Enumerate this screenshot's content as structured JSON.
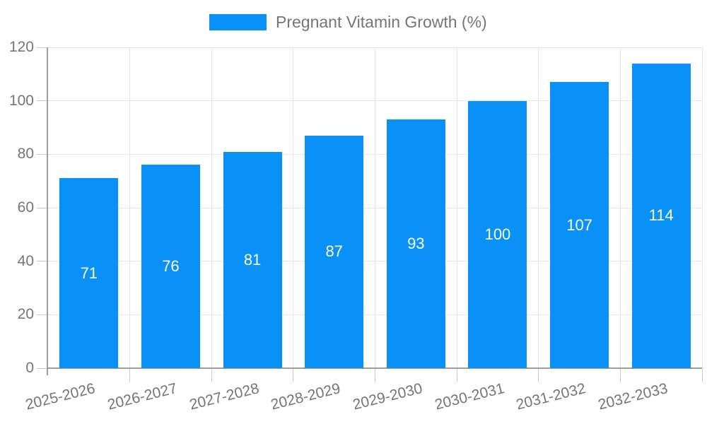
{
  "legend": {
    "label": "Pregnant Vitamin Growth (%)"
  },
  "colors": {
    "bar": "#0a91f7",
    "grid_line": "#e6e6e6",
    "axis_line": "#9e9e9e",
    "tick_mark": "#cccccc",
    "tick_label_text": "#757575",
    "legend_text": "#757575",
    "value_label_text": "#ffffff",
    "background": "#ffffff"
  },
  "chart_data": {
    "type": "bar",
    "title": "",
    "xlabel": "",
    "ylabel": "",
    "categories": [
      "2025-2026",
      "2026-2027",
      "2027-2028",
      "2028-2029",
      "2029-2030",
      "2030-2031",
      "2031-2032",
      "2032-2033"
    ],
    "series": [
      {
        "name": "Pregnant Vitamin Growth (%)",
        "values": [
          71,
          76,
          81,
          87,
          93,
          100,
          107,
          114
        ]
      }
    ],
    "ylim": [
      0,
      120
    ],
    "yticks": [
      0,
      20,
      40,
      60,
      80,
      100,
      120
    ],
    "grid": true,
    "legend_position": "top-center",
    "value_labels": "inside-center",
    "x_tick_rotation_deg": -14
  }
}
